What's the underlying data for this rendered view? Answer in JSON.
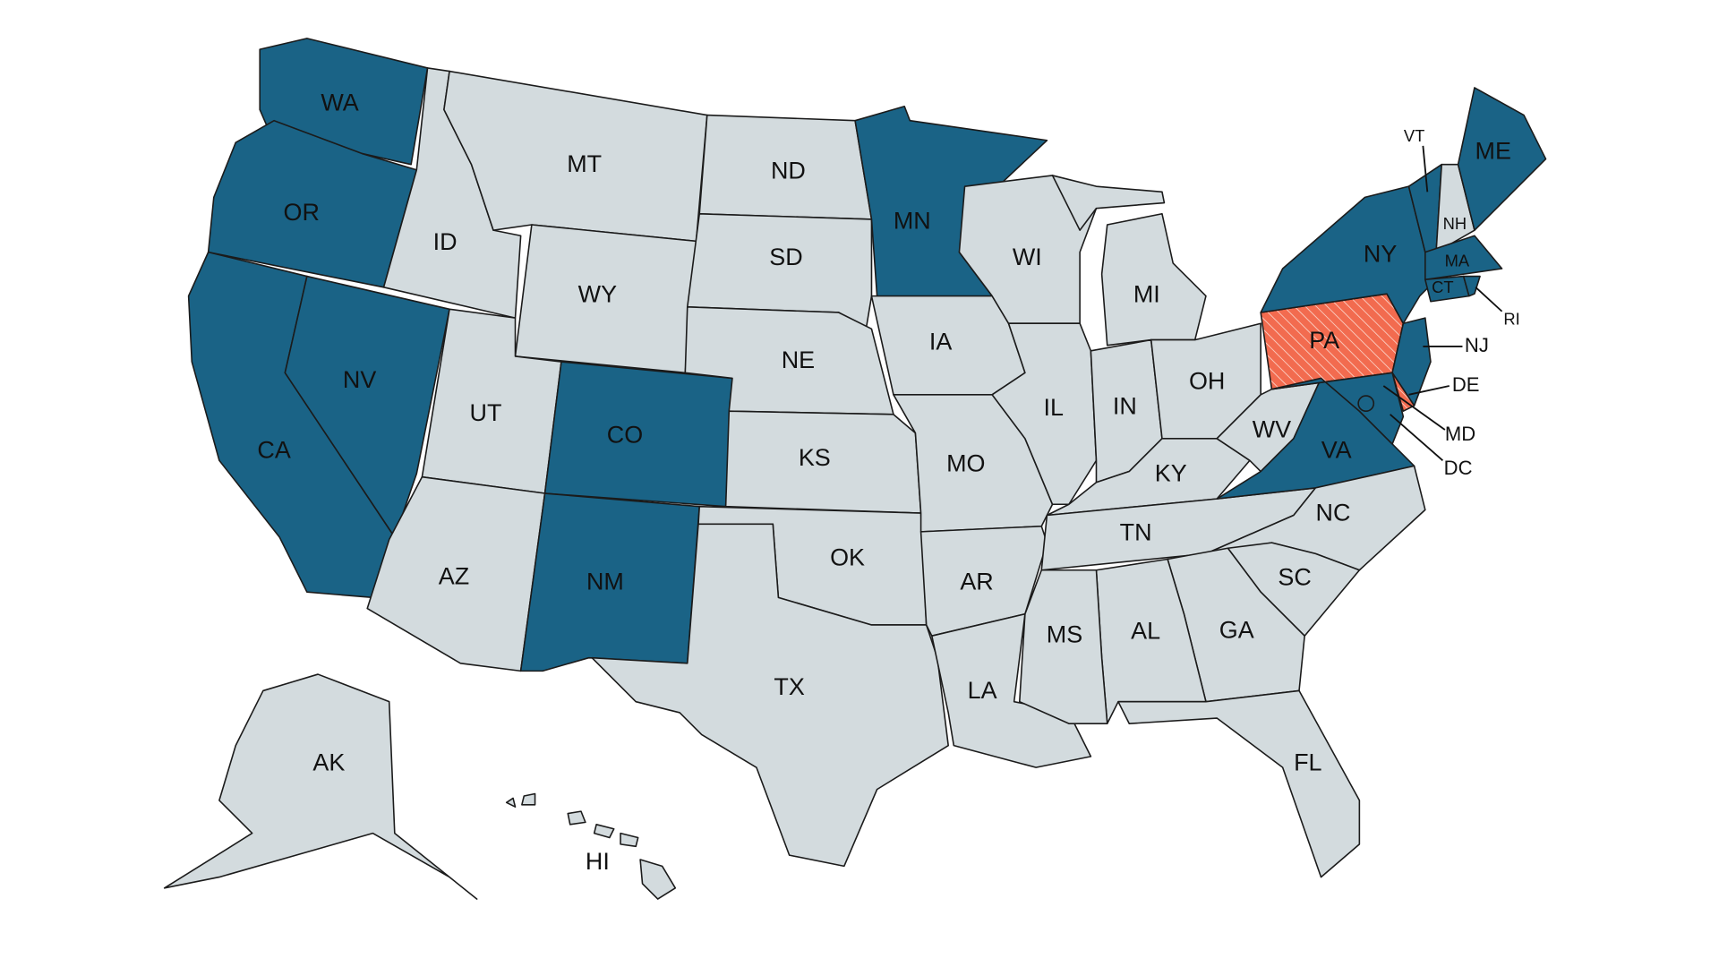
{
  "colors": {
    "highlight": "#1a6386",
    "default": "#d3dbde",
    "partial": "#f26b4f",
    "border": "#1b1b1b"
  },
  "legend_groups": {
    "highlight": "blue",
    "partial": "orange-hatched",
    "default": "gray"
  },
  "states": [
    {
      "abbr": "WA",
      "status": "highlight"
    },
    {
      "abbr": "OR",
      "status": "highlight"
    },
    {
      "abbr": "CA",
      "status": "highlight"
    },
    {
      "abbr": "NV",
      "status": "highlight"
    },
    {
      "abbr": "ID",
      "status": "default"
    },
    {
      "abbr": "MT",
      "status": "default"
    },
    {
      "abbr": "WY",
      "status": "default"
    },
    {
      "abbr": "UT",
      "status": "default"
    },
    {
      "abbr": "CO",
      "status": "highlight"
    },
    {
      "abbr": "AZ",
      "status": "default"
    },
    {
      "abbr": "NM",
      "status": "highlight"
    },
    {
      "abbr": "ND",
      "status": "default"
    },
    {
      "abbr": "SD",
      "status": "default"
    },
    {
      "abbr": "NE",
      "status": "default"
    },
    {
      "abbr": "KS",
      "status": "default"
    },
    {
      "abbr": "OK",
      "status": "default"
    },
    {
      "abbr": "TX",
      "status": "default"
    },
    {
      "abbr": "MN",
      "status": "highlight"
    },
    {
      "abbr": "IA",
      "status": "default"
    },
    {
      "abbr": "MO",
      "status": "default"
    },
    {
      "abbr": "AR",
      "status": "default"
    },
    {
      "abbr": "LA",
      "status": "default"
    },
    {
      "abbr": "WI",
      "status": "default"
    },
    {
      "abbr": "IL",
      "status": "default"
    },
    {
      "abbr": "MI",
      "status": "default"
    },
    {
      "abbr": "IN",
      "status": "default"
    },
    {
      "abbr": "OH",
      "status": "default"
    },
    {
      "abbr": "KY",
      "status": "default"
    },
    {
      "abbr": "TN",
      "status": "default"
    },
    {
      "abbr": "WV",
      "status": "default"
    },
    {
      "abbr": "VA",
      "status": "highlight"
    },
    {
      "abbr": "NC",
      "status": "default"
    },
    {
      "abbr": "SC",
      "status": "default"
    },
    {
      "abbr": "GA",
      "status": "default"
    },
    {
      "abbr": "AL",
      "status": "default"
    },
    {
      "abbr": "MS",
      "status": "default"
    },
    {
      "abbr": "FL",
      "status": "default"
    },
    {
      "abbr": "PA",
      "status": "partial"
    },
    {
      "abbr": "NY",
      "status": "highlight"
    },
    {
      "abbr": "NJ",
      "status": "highlight"
    },
    {
      "abbr": "DE",
      "status": "partial"
    },
    {
      "abbr": "MD",
      "status": "highlight"
    },
    {
      "abbr": "DC",
      "status": "highlight"
    },
    {
      "abbr": "VT",
      "status": "highlight"
    },
    {
      "abbr": "NH",
      "status": "default"
    },
    {
      "abbr": "ME",
      "status": "highlight"
    },
    {
      "abbr": "MA",
      "status": "highlight"
    },
    {
      "abbr": "CT",
      "status": "highlight"
    },
    {
      "abbr": "RI",
      "status": "highlight"
    },
    {
      "abbr": "AK",
      "status": "default"
    },
    {
      "abbr": "HI",
      "status": "default"
    }
  ]
}
